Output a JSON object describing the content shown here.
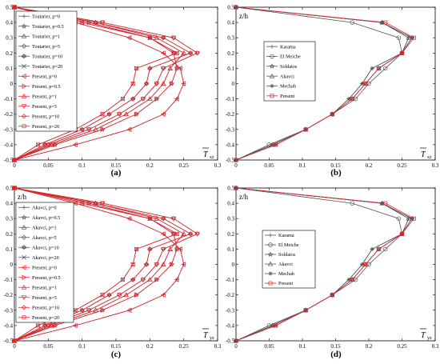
{
  "chart_data": [
    {
      "type": "line",
      "caption": "(a)",
      "ylabel": "z/h",
      "xlabel": "T",
      "xlabel_sub": "xz",
      "xlim": [
        0,
        0.3
      ],
      "ylim": [
        -0.5,
        0.5
      ],
      "xticks": [
        "0",
        "0.05",
        "0.1",
        "0.15",
        "0.2",
        "0.25",
        "0.3"
      ],
      "yticks": [
        "-0.5",
        "-0.4",
        "-0.3",
        "-0.2",
        "-0.1",
        "0",
        "0.1",
        "0.2",
        "0.3",
        "0.4",
        "0.5"
      ],
      "legend_position": "left",
      "y": [
        0.5,
        0.4,
        0.3,
        0.2,
        0.1,
        0,
        -0.1,
        -0.2,
        -0.3,
        -0.4,
        -0.5
      ],
      "series": [
        {
          "name": "Toutarier, p=0",
          "group": "reference",
          "marker": "plus",
          "values": [
            0,
            0.09,
            0.17,
            0.22,
            0.245,
            0.25,
            0.24,
            0.22,
            0.17,
            0.09,
            0
          ]
        },
        {
          "name": "Toutarier, p=0.5",
          "group": "reference",
          "marker": "star",
          "values": [
            0,
            0.11,
            0.2,
            0.235,
            0.24,
            0.232,
            0.21,
            0.18,
            0.13,
            0.06,
            0
          ]
        },
        {
          "name": "Toutarier, p=1",
          "group": "reference",
          "marker": "triangle-up",
          "values": [
            0,
            0.12,
            0.21,
            0.25,
            0.23,
            0.22,
            0.2,
            0.165,
            0.12,
            0.055,
            0
          ]
        },
        {
          "name": "Toutarier, p=5",
          "group": "reference",
          "marker": "diamond",
          "values": [
            0,
            0.13,
            0.235,
            0.27,
            0.22,
            0.21,
            0.19,
            0.155,
            0.11,
            0.05,
            0
          ]
        },
        {
          "name": "Toutarier, p=10",
          "group": "reference",
          "marker": "hexagram",
          "values": [
            0,
            0.12,
            0.22,
            0.26,
            0.2,
            0.195,
            0.175,
            0.14,
            0.1,
            0.045,
            0
          ]
        },
        {
          "name": "Toutarier, p=20",
          "group": "reference",
          "marker": "cross",
          "values": [
            0,
            0.1,
            0.2,
            0.24,
            0.18,
            0.175,
            0.16,
            0.13,
            0.09,
            0.035,
            0
          ]
        },
        {
          "name": "Present, p=0",
          "group": "present",
          "marker": "triangle-left",
          "values": [
            0,
            0.09,
            0.17,
            0.22,
            0.245,
            0.25,
            0.24,
            0.22,
            0.17,
            0.09,
            0
          ]
        },
        {
          "name": "Present, p=0.5",
          "group": "present",
          "marker": "triangle-right",
          "values": [
            0,
            0.11,
            0.2,
            0.235,
            0.24,
            0.232,
            0.21,
            0.18,
            0.13,
            0.06,
            0
          ]
        },
        {
          "name": "Present, p=1",
          "group": "present",
          "marker": "triangle-up",
          "values": [
            0,
            0.12,
            0.21,
            0.25,
            0.23,
            0.22,
            0.2,
            0.165,
            0.12,
            0.055,
            0
          ]
        },
        {
          "name": "Present, p=5",
          "group": "present",
          "marker": "triangle-down",
          "values": [
            0,
            0.13,
            0.235,
            0.27,
            0.22,
            0.21,
            0.19,
            0.155,
            0.11,
            0.05,
            0
          ]
        },
        {
          "name": "Present, p=10",
          "group": "present",
          "marker": "diamond",
          "values": [
            0,
            0.12,
            0.22,
            0.26,
            0.2,
            0.195,
            0.175,
            0.14,
            0.1,
            0.045,
            0
          ]
        },
        {
          "name": "Present, p=20",
          "group": "present",
          "marker": "square",
          "values": [
            0,
            0.1,
            0.2,
            0.24,
            0.18,
            0.175,
            0.16,
            0.13,
            0.09,
            0.035,
            0
          ]
        }
      ]
    },
    {
      "type": "line",
      "caption": "(b)",
      "ylabel": "z/h",
      "xlabel": "T",
      "xlabel_sub": "xz",
      "xlim": [
        0,
        0.3
      ],
      "ylim": [
        -0.5,
        0.5
      ],
      "xticks": [
        "0",
        "0.05",
        "0.1",
        "0.15",
        "0.2",
        "0.25",
        "0.3"
      ],
      "yticks": [
        "-0.5",
        "-0.4",
        "-0.3",
        "-0.2",
        "-0.1",
        "0",
        "0.1",
        "0.2",
        "0.3",
        "0.4",
        "0.5"
      ],
      "legend_position": "top-left",
      "y": [
        0.5,
        0.4,
        0.3,
        0.2,
        0.1,
        0,
        -0.1,
        -0.2,
        -0.3,
        -0.4,
        -0.5
      ],
      "series": [
        {
          "name": "Karama",
          "group": "reference",
          "marker": "plus",
          "values": [
            0,
            0.22,
            0.26,
            0.25,
            0.205,
            0.19,
            0.17,
            0.145,
            0.105,
            0.055,
            0
          ]
        },
        {
          "name": "El Meiche",
          "group": "reference",
          "marker": "circle",
          "values": [
            0,
            0.175,
            0.245,
            0.25,
            0.225,
            0.2,
            0.18,
            0.145,
            0.105,
            0.05,
            0
          ]
        },
        {
          "name": "Soldatos",
          "group": "reference",
          "marker": "star",
          "values": [
            0,
            0.22,
            0.265,
            0.25,
            0.215,
            0.195,
            0.175,
            0.145,
            0.105,
            0.055,
            0
          ]
        },
        {
          "name": "Akavci",
          "group": "reference",
          "marker": "triangle-up",
          "values": [
            0,
            0.22,
            0.26,
            0.25,
            0.215,
            0.195,
            0.175,
            0.145,
            0.105,
            0.055,
            0
          ]
        },
        {
          "name": "Mechab",
          "group": "reference",
          "marker": "asterisk",
          "values": [
            0,
            0.22,
            0.265,
            0.25,
            0.205,
            0.19,
            0.17,
            0.145,
            0.105,
            0.06,
            0
          ]
        },
        {
          "name": "Present",
          "group": "present",
          "marker": "square",
          "values": [
            0,
            0.225,
            0.268,
            0.25,
            0.215,
            0.195,
            0.175,
            0.145,
            0.105,
            0.06,
            0
          ]
        }
      ]
    },
    {
      "type": "line",
      "caption": "(c)",
      "ylabel": "z/h",
      "xlabel": "T",
      "xlabel_sub": "yz",
      "xlim": [
        0,
        0.3
      ],
      "ylim": [
        -0.5,
        0.5
      ],
      "xticks": [
        "0",
        "0.05",
        "0.1",
        "0.15",
        "0.2",
        "0.25",
        "0.3"
      ],
      "yticks": [
        "-0.5",
        "-0.4",
        "-0.3",
        "-0.2",
        "-0.1",
        "0",
        "0.1",
        "0.2",
        "0.3",
        "0.4",
        "0.5"
      ],
      "legend_position": "left",
      "y": [
        0.5,
        0.4,
        0.3,
        0.2,
        0.1,
        0,
        -0.1,
        -0.2,
        -0.3,
        -0.4,
        -0.5
      ],
      "series": [
        {
          "name": "Akavci, p=0",
          "group": "reference",
          "marker": "plus",
          "values": [
            0,
            0.09,
            0.17,
            0.22,
            0.245,
            0.25,
            0.24,
            0.22,
            0.17,
            0.09,
            0
          ]
        },
        {
          "name": "Akavci, p=0.5",
          "group": "reference",
          "marker": "star",
          "values": [
            0,
            0.11,
            0.2,
            0.235,
            0.24,
            0.232,
            0.21,
            0.18,
            0.13,
            0.06,
            0
          ]
        },
        {
          "name": "Akavci, p=1",
          "group": "reference",
          "marker": "triangle-up",
          "values": [
            0,
            0.12,
            0.21,
            0.25,
            0.23,
            0.22,
            0.2,
            0.165,
            0.12,
            0.055,
            0
          ]
        },
        {
          "name": "Akavci, p=5",
          "group": "reference",
          "marker": "diamond",
          "values": [
            0,
            0.13,
            0.235,
            0.27,
            0.22,
            0.21,
            0.19,
            0.155,
            0.11,
            0.05,
            0
          ]
        },
        {
          "name": "Akavci, p=10",
          "group": "reference",
          "marker": "hexagram",
          "values": [
            0,
            0.12,
            0.22,
            0.26,
            0.2,
            0.195,
            0.175,
            0.14,
            0.1,
            0.045,
            0
          ]
        },
        {
          "name": "Akavci, p=20",
          "group": "reference",
          "marker": "cross",
          "values": [
            0,
            0.1,
            0.2,
            0.24,
            0.18,
            0.175,
            0.16,
            0.13,
            0.09,
            0.035,
            0
          ]
        },
        {
          "name": "Present, p=0",
          "group": "present",
          "marker": "triangle-left",
          "values": [
            0,
            0.09,
            0.17,
            0.22,
            0.245,
            0.25,
            0.24,
            0.22,
            0.17,
            0.09,
            0
          ]
        },
        {
          "name": "Present, p=0.5",
          "group": "present",
          "marker": "triangle-right",
          "values": [
            0,
            0.11,
            0.2,
            0.235,
            0.24,
            0.232,
            0.21,
            0.18,
            0.13,
            0.06,
            0
          ]
        },
        {
          "name": "Present, p=1",
          "group": "present",
          "marker": "triangle-up",
          "values": [
            0,
            0.12,
            0.21,
            0.25,
            0.23,
            0.22,
            0.2,
            0.165,
            0.12,
            0.055,
            0
          ]
        },
        {
          "name": "Present, p=5",
          "group": "present",
          "marker": "triangle-down",
          "values": [
            0,
            0.13,
            0.235,
            0.27,
            0.22,
            0.21,
            0.19,
            0.155,
            0.11,
            0.05,
            0
          ]
        },
        {
          "name": "Present, p=10",
          "group": "present",
          "marker": "diamond",
          "values": [
            0,
            0.12,
            0.22,
            0.26,
            0.2,
            0.195,
            0.175,
            0.14,
            0.1,
            0.045,
            0
          ]
        },
        {
          "name": "Present, p=20",
          "group": "present",
          "marker": "square",
          "values": [
            0,
            0.1,
            0.2,
            0.24,
            0.18,
            0.175,
            0.16,
            0.13,
            0.09,
            0.035,
            0
          ]
        }
      ]
    },
    {
      "type": "line",
      "caption": "(d)",
      "ylabel": "z/h",
      "xlabel": "T",
      "xlabel_sub": "yz",
      "xlim": [
        0,
        0.3
      ],
      "ylim": [
        -0.5,
        0.5
      ],
      "xticks": [
        "0",
        "0.05",
        "0.1",
        "0.15",
        "0.2",
        "0.25",
        "0.3"
      ],
      "yticks": [
        "-0.5",
        "-0.4",
        "-0.3",
        "-0.2",
        "-0.1",
        "0",
        "0.1",
        "0.2",
        "0.3",
        "0.4",
        "0.5"
      ],
      "legend_position": "left",
      "y": [
        0.5,
        0.4,
        0.3,
        0.2,
        0.1,
        0,
        -0.1,
        -0.2,
        -0.3,
        -0.4,
        -0.5
      ],
      "series": [
        {
          "name": "Karama",
          "group": "reference",
          "marker": "plus",
          "values": [
            0,
            0.22,
            0.26,
            0.25,
            0.205,
            0.19,
            0.17,
            0.145,
            0.105,
            0.055,
            0
          ]
        },
        {
          "name": "El Meiche",
          "group": "reference",
          "marker": "circle",
          "values": [
            0,
            0.175,
            0.245,
            0.25,
            0.225,
            0.2,
            0.18,
            0.145,
            0.105,
            0.05,
            0
          ]
        },
        {
          "name": "Soldatos",
          "group": "reference",
          "marker": "star",
          "values": [
            0,
            0.22,
            0.265,
            0.25,
            0.215,
            0.195,
            0.175,
            0.145,
            0.105,
            0.055,
            0
          ]
        },
        {
          "name": "Akavci",
          "group": "reference",
          "marker": "triangle-up",
          "values": [
            0,
            0.22,
            0.26,
            0.25,
            0.215,
            0.195,
            0.175,
            0.145,
            0.105,
            0.055,
            0
          ]
        },
        {
          "name": "Mechab",
          "group": "reference",
          "marker": "asterisk",
          "values": [
            0,
            0.22,
            0.265,
            0.25,
            0.205,
            0.19,
            0.17,
            0.145,
            0.105,
            0.06,
            0
          ]
        },
        {
          "name": "Present",
          "group": "present",
          "marker": "square",
          "values": [
            0,
            0.225,
            0.268,
            0.25,
            0.215,
            0.195,
            0.175,
            0.145,
            0.105,
            0.06,
            0
          ]
        }
      ]
    }
  ],
  "colors": {
    "reference": "#555555",
    "present": "#e8212a",
    "axis": "#000000"
  }
}
